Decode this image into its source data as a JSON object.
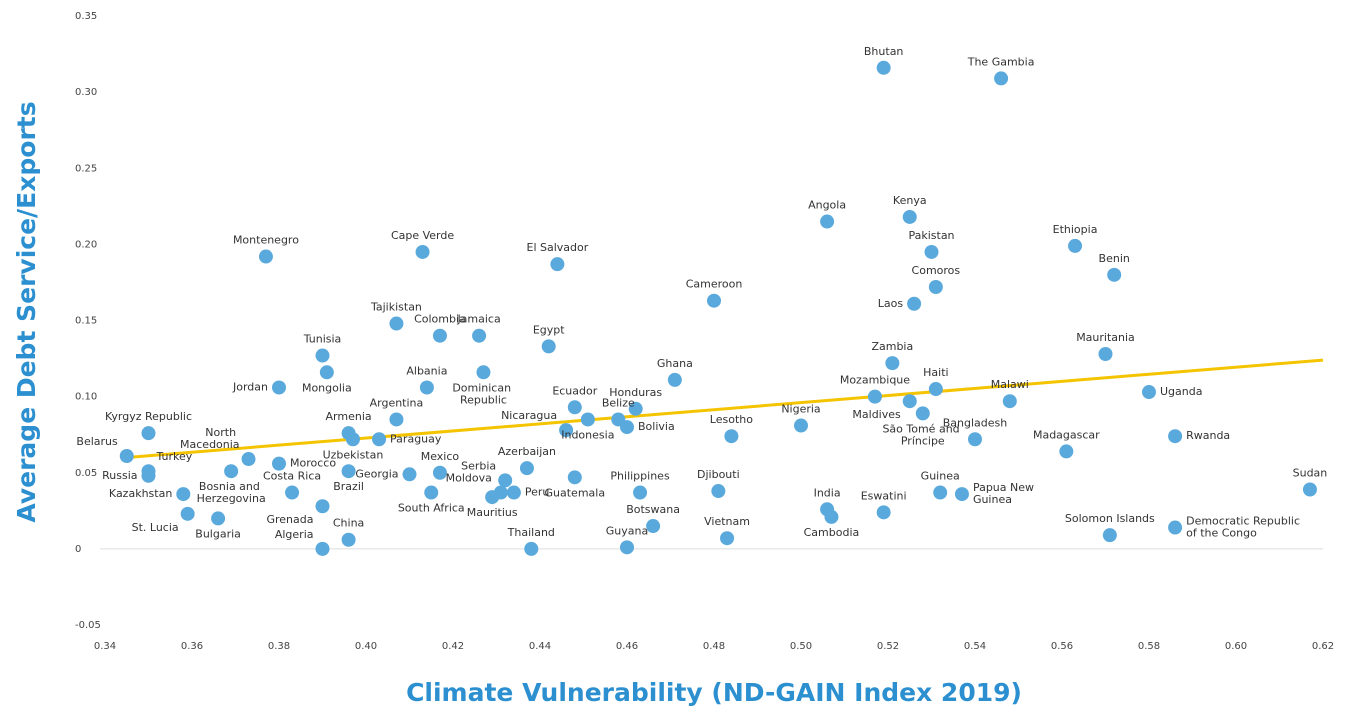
{
  "chart_data": {
    "type": "scatter",
    "xlabel": "Climate Vulnerability (ND-GAIN Index 2019)",
    "ylabel": "Average Debt Service/Exports",
    "color": "#5aa9dc",
    "axis_label_color": "#2b8fd0",
    "labels": [
      "Bhutan",
      "The Gambia",
      "Angola",
      "Kenya",
      "Pakistan",
      "Comoros",
      "Laos",
      "Ethiopia",
      "Benin",
      "Cameroon",
      "Zambia",
      "Haiti",
      "Mozambique",
      "Maldives",
      "São Tomé and Príncipe",
      "Malawi",
      "Bangladesh",
      "Mauritania",
      "Uganda",
      "Madagascar",
      "Rwanda",
      "Sudan",
      "Solomon Islands",
      "Democratic Republic of the Congo",
      "Guinea",
      "Papua New Guinea",
      "Eswatini",
      "India",
      "Cambodia",
      "Nigeria",
      "Lesotho",
      "Djibouti",
      "Vietnam",
      "Ghana",
      "Honduras",
      "Belize",
      "Bolivia",
      "Indonesia",
      "Nicaragua",
      "Ecuador",
      "Egypt",
      "El Salvador",
      "Azerbaijan",
      "Guatemala",
      "Philippines",
      "Botswana",
      "Guyana",
      "Thailand",
      "Serbia",
      "Moldova",
      "Peru",
      "Mauritius",
      "Mexico",
      "South Africa",
      "Georgia",
      "Brazil",
      "Jamaica",
      "Colombia",
      "Dominican Republic",
      "Albania",
      "Tajikistan",
      "Cape Verde",
      "Argentina",
      "Armenia",
      "Paraguay",
      "Uzbekistan",
      "Montenegro",
      "Tunisia",
      "Mongolia",
      "Jordan",
      "Morocco",
      "North Macedonia",
      "Bosnia and Herzegovina",
      "Costa Rica",
      "Grenada",
      "Algeria",
      "China",
      "Bulgaria",
      "St. Lucia",
      "Kazakhstan",
      "Turkey",
      "Russia",
      "Belarus",
      "Kyrgyz Republic"
    ],
    "x": [
      0.519,
      0.546,
      0.506,
      0.525,
      0.53,
      0.531,
      0.526,
      0.563,
      0.572,
      0.48,
      0.521,
      0.531,
      0.517,
      0.525,
      0.528,
      0.548,
      0.54,
      0.57,
      0.58,
      0.561,
      0.586,
      0.617,
      0.571,
      0.586,
      0.532,
      0.537,
      0.519,
      0.506,
      0.507,
      0.5,
      0.484,
      0.481,
      0.483,
      0.471,
      0.462,
      0.458,
      0.46,
      0.451,
      0.446,
      0.448,
      0.442,
      0.444,
      0.437,
      0.448,
      0.463,
      0.466,
      0.46,
      0.438,
      0.432,
      0.431,
      0.434,
      0.429,
      0.417,
      0.415,
      0.41,
      0.396,
      0.426,
      0.417,
      0.427,
      0.414,
      0.407,
      0.413,
      0.407,
      0.396,
      0.403,
      0.397,
      0.377,
      0.39,
      0.391,
      0.38,
      0.38,
      0.373,
      0.369,
      0.383,
      0.39,
      0.39,
      0.396,
      0.366,
      0.359,
      0.358,
      0.35,
      0.35,
      0.345,
      0.35
    ],
    "values": [
      0.316,
      0.309,
      0.215,
      0.218,
      0.195,
      0.172,
      0.161,
      0.199,
      0.18,
      0.163,
      0.122,
      0.105,
      0.1,
      0.097,
      0.089,
      0.097,
      0.072,
      0.128,
      0.103,
      0.064,
      0.074,
      0.039,
      0.009,
      0.014,
      0.037,
      0.036,
      0.024,
      0.026,
      0.021,
      0.081,
      0.074,
      0.038,
      0.007,
      0.111,
      0.092,
      0.085,
      0.08,
      0.085,
      0.078,
      0.093,
      0.133,
      0.187,
      0.053,
      0.047,
      0.037,
      0.015,
      0.001,
      0,
      0.045,
      0.037,
      0.037,
      0.034,
      0.05,
      0.037,
      0.049,
      0.051,
      0.14,
      0.14,
      0.116,
      0.106,
      0.148,
      0.195,
      0.085,
      0.076,
      0.072,
      0.072,
      0.192,
      0.127,
      0.116,
      0.106,
      0.056,
      0.059,
      0.051,
      0.037,
      0.028,
      0,
      0.006,
      0.02,
      0.023,
      0.036,
      0.051,
      0.048,
      0.061,
      0.076
    ],
    "trendline": {
      "color": "#f5c400",
      "x": [
        0.345,
        0.62
      ],
      "y": [
        0.06,
        0.124
      ]
    },
    "xlim": [
      0.34,
      0.62
    ],
    "xticks": [
      0.34,
      0.36,
      0.38,
      {
        "value": 0.4,
        "label": "0.40"
      },
      0.42,
      0.44,
      0.46,
      0.48,
      {
        "value": 0.5,
        "label": "0.50"
      },
      0.52,
      0.54,
      0.56,
      0.58,
      {
        "value": 0.6,
        "label": "0.60"
      },
      0.62
    ],
    "ylim": [
      -0.05,
      0.35
    ],
    "yticks": [
      -0.05,
      0,
      0.05,
      {
        "value": 0.1,
        "label": "0.10"
      },
      0.15,
      {
        "value": 0.2,
        "label": "0.20"
      },
      0.25,
      {
        "value": 0.3,
        "label": "0.30"
      },
      0.35
    ],
    "grid": false
  }
}
